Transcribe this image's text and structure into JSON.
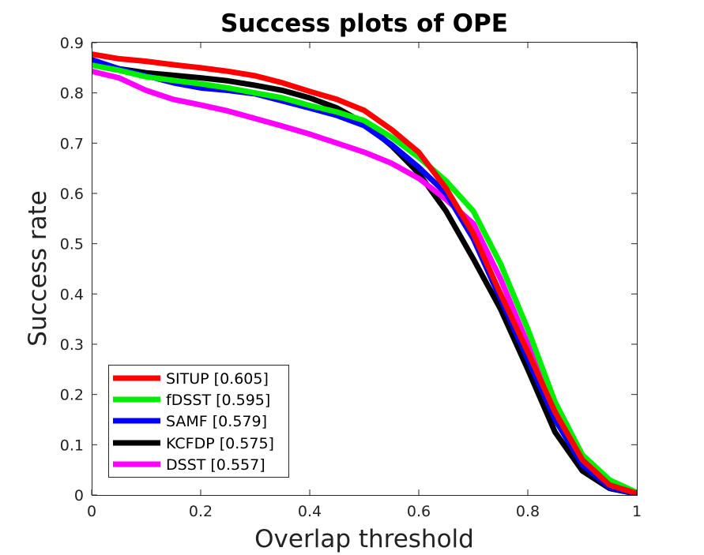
{
  "chart_data": {
    "type": "line",
    "title": "Success plots of OPE",
    "xlabel": "Overlap threshold",
    "ylabel": "Success rate",
    "xlim": [
      0,
      1
    ],
    "ylim": [
      0,
      0.9
    ],
    "xticks": [
      "0",
      "0.2",
      "0.4",
      "0.6",
      "0.8",
      "1"
    ],
    "yticks": [
      "0",
      "0.1",
      "0.2",
      "0.3",
      "0.4",
      "0.5",
      "0.6",
      "0.7",
      "0.8",
      "0.9"
    ],
    "grid": false,
    "legend_position": "bottom-left",
    "x": [
      0,
      0.05,
      0.1,
      0.15,
      0.2,
      0.25,
      0.3,
      0.35,
      0.4,
      0.45,
      0.5,
      0.55,
      0.6,
      0.65,
      0.7,
      0.75,
      0.8,
      0.85,
      0.9,
      0.95,
      1.0
    ],
    "series": [
      {
        "name": "SITUP [0.605]",
        "color": "#ff0000",
        "values": [
          0.877,
          0.868,
          0.863,
          0.856,
          0.85,
          0.843,
          0.834,
          0.82,
          0.803,
          0.787,
          0.765,
          0.727,
          0.682,
          0.61,
          0.52,
          0.4,
          0.285,
          0.165,
          0.07,
          0.02,
          0.003
        ]
      },
      {
        "name": "fDSST [0.595]",
        "color": "#00ee00",
        "values": [
          0.855,
          0.845,
          0.832,
          0.825,
          0.818,
          0.81,
          0.8,
          0.79,
          0.775,
          0.762,
          0.745,
          0.712,
          0.672,
          0.625,
          0.565,
          0.46,
          0.33,
          0.185,
          0.08,
          0.03,
          0.005
        ]
      },
      {
        "name": "SAMF [0.579]",
        "color": "#0000ff",
        "values": [
          0.866,
          0.848,
          0.834,
          0.82,
          0.81,
          0.805,
          0.798,
          0.784,
          0.77,
          0.755,
          0.735,
          0.697,
          0.652,
          0.6,
          0.51,
          0.39,
          0.27,
          0.15,
          0.06,
          0.015,
          0.002
        ]
      },
      {
        "name": "KCFDP [0.575]",
        "color": "#000000",
        "values": [
          0.856,
          0.848,
          0.84,
          0.835,
          0.83,
          0.824,
          0.815,
          0.805,
          0.79,
          0.77,
          0.74,
          0.695,
          0.64,
          0.565,
          0.47,
          0.37,
          0.25,
          0.125,
          0.048,
          0.013,
          0.002
        ]
      },
      {
        "name": "DSST [0.557]",
        "color": "#ff00ff",
        "values": [
          0.843,
          0.83,
          0.805,
          0.787,
          0.776,
          0.764,
          0.749,
          0.734,
          0.718,
          0.7,
          0.682,
          0.66,
          0.63,
          0.588,
          0.54,
          0.43,
          0.3,
          0.17,
          0.07,
          0.018,
          0.003
        ]
      }
    ]
  }
}
